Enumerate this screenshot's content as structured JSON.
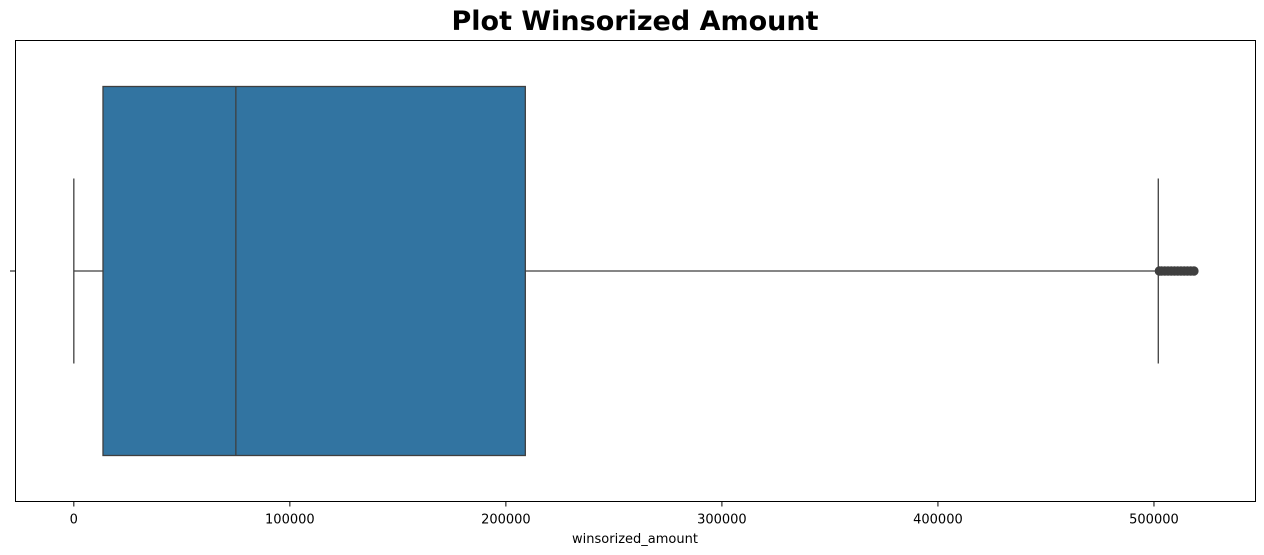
{
  "chart_data": {
    "type": "box",
    "title": "Plot Winsorized Amount",
    "xlabel": "winsorized_amount",
    "ylabel": "",
    "orientation": "horizontal",
    "xlim": [
      -27000,
      547000
    ],
    "xticks": [
      0,
      100000,
      200000,
      300000,
      400000,
      500000
    ],
    "xtick_labels": [
      "0",
      "100000",
      "200000",
      "300000",
      "400000",
      "500000"
    ],
    "grid": false,
    "legend": "none",
    "series": [
      {
        "box": {
          "whisker_low": 0,
          "q1": 13500,
          "median": 75000,
          "q3": 209000,
          "whisker_high": 502000
        },
        "outliers": [
          502500,
          503500,
          505000,
          506500,
          508000,
          509500,
          511000,
          512500,
          514000,
          515500,
          517000,
          518500
        ]
      }
    ],
    "colors": {
      "box_fill": "#3274a1",
      "line": "#3f3f3f",
      "outlier": "#3f3f3f"
    }
  }
}
